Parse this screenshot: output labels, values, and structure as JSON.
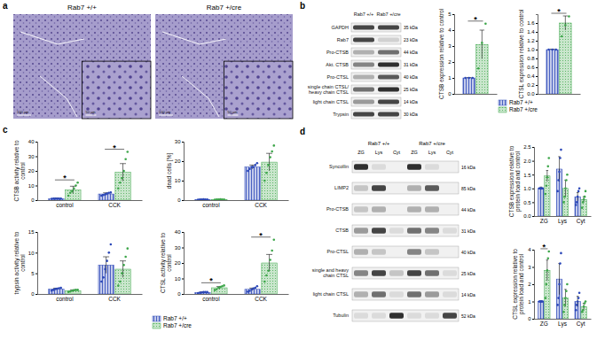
{
  "panel_labels": [
    "a",
    "b",
    "c",
    "d"
  ],
  "histology": {
    "labels": [
      "Rab7 +/+",
      "Rab7 +/cre"
    ],
    "scale_bars": [
      "100 µm",
      "50 µm"
    ]
  },
  "blots": [
    {
      "columns": [
        "Rab7 +/+",
        "Rab7 +/cre"
      ],
      "rows": [
        {
          "label": "GAPDH",
          "kda": "35 kDa",
          "bands": [
            0.8,
            0.8
          ]
        },
        {
          "label": "Rab7",
          "kda": "23 kDa",
          "bands": [
            0.8,
            0.15
          ]
        },
        {
          "label": "Pro-CTSB",
          "kda": "44 kDa",
          "bands": [
            0.3,
            0.6
          ]
        },
        {
          "label": "Akt. CTSB",
          "kda": "31 kDa",
          "bands": [
            0.5,
            0.9
          ]
        },
        {
          "label": "Pro-CTSL",
          "kda": "40 kDa",
          "bands": [
            0.3,
            0.7
          ]
        },
        {
          "label": "single chain CTSL/ heavy chain CTSL",
          "kda": "25 kDa",
          "bands": [
            0.6,
            0.9
          ]
        },
        {
          "label": "light chain CTSL",
          "kda": "14 kDa",
          "bands": [
            0.4,
            0.8
          ]
        },
        {
          "label": "Trypsin",
          "kda": "30 kDa",
          "bands": [
            0.8,
            0.8
          ]
        }
      ]
    },
    {
      "groups": [
        "Rab7 +/+",
        "Rab7 +/cre"
      ],
      "lanes": [
        "ZG",
        "Lys",
        "Cyt",
        "ZG",
        "Lys",
        "Cyt"
      ],
      "rows": [
        {
          "label": "Syncollin",
          "kda": "16 kDa",
          "bands": [
            0.9,
            0.1,
            0.0,
            0.9,
            0.1,
            0.0
          ]
        },
        {
          "label": "LIMP2",
          "kda": "85 kDa",
          "bands": [
            0.2,
            0.8,
            0.0,
            0.3,
            0.7,
            0.0
          ]
        },
        {
          "label": "Pro-CTSB",
          "kda": "44 kDa",
          "bands": [
            0.2,
            0.3,
            0.0,
            0.3,
            0.3,
            0.0
          ]
        },
        {
          "label": "CTSB",
          "kda": "31 kDa",
          "bands": [
            0.4,
            0.8,
            0.1,
            0.6,
            0.5,
            0.1
          ]
        },
        {
          "label": "Pro-CTSL",
          "kda": "40 kDa",
          "bands": [
            0.3,
            0.2,
            0.0,
            0.5,
            0.2,
            0.0
          ]
        },
        {
          "label": "single and heavy chain CTSL",
          "kda": "25 kDa",
          "bands": [
            0.5,
            0.8,
            0.2,
            0.8,
            0.6,
            0.1
          ]
        },
        {
          "label": "light chain CTSL",
          "kda": "14 kDa",
          "bands": [
            0.3,
            0.6,
            0.1,
            0.6,
            0.4,
            0.1
          ]
        },
        {
          "label": "Tubulin",
          "kda": "52 kDa",
          "bands": [
            0.1,
            0.1,
            0.9,
            0.1,
            0.1,
            0.8
          ]
        }
      ]
    }
  ],
  "chart_data": [
    {
      "type": "bar",
      "ylabel": "CTSB expression relative to control",
      "categories": [
        null
      ],
      "ylim": [
        0,
        5
      ],
      "yticks": [
        0,
        1,
        2,
        3,
        4,
        5
      ],
      "series": [
        {
          "name": "Rab7 +/+",
          "color": "#2b47b8",
          "values": [
            1
          ],
          "errors": [
            0.02
          ],
          "points": [
            [
              1,
              1,
              1
            ]
          ]
        },
        {
          "name": "Rab7 +/cre",
          "color": "#3da64a",
          "values": [
            3.1
          ],
          "errors": [
            0.9
          ],
          "points": [
            [
              1.6,
              3.2,
              4.4
            ]
          ]
        }
      ],
      "annotations": [
        {
          "text": "*",
          "category": 0
        }
      ]
    },
    {
      "type": "bar",
      "ylabel": "CTSL expression relative to control",
      "categories": [
        null
      ],
      "ylim": [
        0,
        1.8
      ],
      "yticks": [
        {
          "value": 0,
          "label": "0.0"
        },
        {
          "value": 0.2,
          "label": "0.2"
        },
        {
          "value": 0.4,
          "label": "0.4"
        },
        {
          "value": 0.6,
          "label": "0.6"
        },
        {
          "value": 0.8,
          "label": "0.8"
        },
        {
          "value": 1,
          "label": "1.0"
        },
        {
          "value": 1.2,
          "label": "1.2"
        },
        {
          "value": 1.4,
          "label": "1.4"
        },
        {
          "value": 1.6,
          "label": "1.6"
        }
      ],
      "legend": "bottom",
      "series": [
        {
          "name": "Rab7 +/+",
          "color": "#2b47b8",
          "values": [
            1.0
          ],
          "errors": [
            0.01
          ],
          "points": [
            [
              1,
              1,
              1
            ]
          ]
        },
        {
          "name": "Rab7 +/cre",
          "color": "#3da64a",
          "values": [
            1.6
          ],
          "errors": [
            0.16
          ],
          "points": [
            [
              1.3,
              1.55,
              1.75
            ]
          ]
        }
      ],
      "annotations": [
        {
          "text": "*",
          "category": 0
        }
      ]
    },
    {
      "type": "bar",
      "ylabel": "CTSB activity relative to control",
      "categories": [
        "control",
        "CCK"
      ],
      "ylim": [
        0,
        40
      ],
      "yticks": [
        0,
        10,
        20,
        30,
        40
      ],
      "series": [
        {
          "name": "Rab7 +/+",
          "color": "#2b47b8",
          "values": [
            1,
            4.2
          ],
          "errors": [
            0.3,
            0.8
          ],
          "points": [
            [
              0.9,
              1,
              1,
              1.1,
              1,
              1
            ],
            [
              3,
              3.5,
              4,
              4.5,
              5,
              5.2
            ]
          ]
        },
        {
          "name": "Rab7 +/cre",
          "color": "#3da64a",
          "values": [
            7,
            19
          ],
          "errors": [
            2.5,
            6
          ],
          "points": [
            [
              3,
              5,
              6,
              8,
              10,
              12
            ],
            [
              8,
              12,
              15,
              20,
              28,
              33
            ]
          ]
        }
      ],
      "annotations": [
        {
          "text": "*",
          "category": 0
        },
        {
          "text": "*",
          "category": 1
        }
      ]
    },
    {
      "type": "bar",
      "ylabel": "dead cells [%]",
      "categories": [
        "control",
        "CCK"
      ],
      "ylim": [
        0,
        30
      ],
      "yticks": [
        0,
        10,
        20,
        30
      ],
      "series": [
        {
          "name": "Rab7 +/+",
          "color": "#2b47b8",
          "values": [
            0.3,
            17
          ],
          "errors": [
            0.1,
            1
          ],
          "points": [
            [
              0.2,
              0.3,
              0.3,
              0.4,
              0.3,
              0.3
            ],
            [
              15,
              16,
              17,
              17,
              18,
              19
            ]
          ]
        },
        {
          "name": "Rab7 +/cre",
          "color": "#3da64a",
          "values": [
            0.3,
            19.5
          ],
          "errors": [
            0.1,
            4.5
          ],
          "points": [
            [
              0.2,
              0.3,
              0.3,
              0.4,
              0.3,
              0.3
            ],
            [
              10,
              14,
              18,
              22,
              25,
              28
            ]
          ]
        }
      ]
    },
    {
      "type": "bar",
      "ylabel": "trypsin activity relative to control",
      "categories": [
        "control",
        "CCK"
      ],
      "ylim": [
        0,
        15
      ],
      "yticks": [
        0,
        5,
        10,
        15
      ],
      "legend": "bottom",
      "series": [
        {
          "name": "Rab7 +/+",
          "color": "#2b47b8",
          "values": [
            1.2,
            7
          ],
          "errors": [
            0.2,
            2
          ],
          "points": [
            [
              0.8,
              1,
              1.2,
              1.3,
              1.4,
              1.5
            ],
            [
              3,
              4,
              6,
              8,
              10,
              12
            ]
          ]
        },
        {
          "name": "Rab7 +/cre",
          "color": "#3da64a",
          "values": [
            0.8,
            6
          ],
          "errors": [
            0.2,
            2
          ],
          "points": [
            [
              0.5,
              0.6,
              0.8,
              0.9,
              1,
              1
            ],
            [
              2,
              3,
              5,
              7,
              9,
              11
            ]
          ]
        }
      ]
    },
    {
      "type": "bar",
      "ylabel": "CTSL activity relative to control",
      "categories": [
        "control",
        "CCK"
      ],
      "ylim": [
        0,
        40
      ],
      "yticks": [
        0,
        10,
        20,
        30,
        40
      ],
      "series": [
        {
          "name": "Rab7 +/+",
          "color": "#2b47b8",
          "values": [
            1,
            3
          ],
          "errors": [
            0.3,
            0.8
          ],
          "points": [
            [
              0.5,
              0.8,
              1,
              1.2,
              1.3,
              1.2
            ],
            [
              1.5,
              2,
              3,
              3.5,
              4,
              5
            ]
          ]
        },
        {
          "name": "Rab7 +/cre",
          "color": "#3da64a",
          "values": [
            4,
            20
          ],
          "errors": [
            0.8,
            5.5
          ],
          "points": [
            [
              2.5,
              3,
              4,
              4.5,
              5,
              5.5
            ],
            [
              8,
              12,
              15,
              22,
              28,
              35
            ]
          ]
        }
      ],
      "annotations": [
        {
          "text": "*",
          "category": 0
        },
        {
          "text": "*",
          "category": 1
        }
      ]
    },
    {
      "type": "bar",
      "ylabel": "CTSB expression relative to protein load and control",
      "categories": [
        "ZG",
        "Lys",
        "Cyt"
      ],
      "ylim": [
        0,
        2.5
      ],
      "yticks": [
        {
          "value": 0,
          "label": "0.0"
        },
        {
          "value": 0.5,
          "label": "0.5"
        },
        {
          "value": 1,
          "label": "1.0"
        },
        {
          "value": 1.5,
          "label": "1.5"
        },
        {
          "value": 2,
          "label": "2.0"
        },
        {
          "value": 2.5,
          "label": "2.5"
        }
      ],
      "series": [
        {
          "name": "Rab7 +/+",
          "color": "#2b47b8",
          "values": [
            1,
            1.7,
            0.7
          ],
          "errors": [
            0.05,
            0.45,
            0.15
          ],
          "points": [
            [
              1,
              1,
              1,
              1,
              1
            ],
            [
              0.9,
              1.3,
              1.6,
              2.1,
              2.4
            ],
            [
              0.4,
              0.5,
              0.7,
              0.9,
              1.0
            ]
          ]
        },
        {
          "name": "Rab7 +/cre",
          "color": "#3da64a",
          "values": [
            1.45,
            1.0,
            0.6
          ],
          "errors": [
            0.2,
            0.3,
            0.1
          ],
          "points": [
            [
              0.8,
              1.1,
              1.4,
              1.8,
              2.1
            ],
            [
              0.5,
              0.7,
              1.0,
              1.3,
              1.5
            ],
            [
              0.3,
              0.5,
              0.6,
              0.7,
              0.9
            ]
          ]
        }
      ]
    },
    {
      "type": "bar",
      "ylabel": "CTSL expression relative to protein load and control",
      "categories": [
        "ZG",
        "Lys",
        "Cyt"
      ],
      "ylim": [
        0,
        4
      ],
      "yticks": [
        0,
        1,
        2,
        3,
        4
      ],
      "series": [
        {
          "name": "Rab7 +/+",
          "color": "#2b47b8",
          "values": [
            1,
            2.3,
            1.0
          ],
          "errors": [
            0.05,
            0.9,
            0.3
          ],
          "points": [
            [
              1,
              1,
              1,
              1,
              1
            ],
            [
              0.8,
              1.2,
              2,
              3.2,
              3.8
            ],
            [
              0.5,
              0.8,
              1.0,
              1.2,
              1.5
            ]
          ]
        },
        {
          "name": "Rab7 +/cre",
          "color": "#3da64a",
          "values": [
            2.8,
            1.2,
            0.7
          ],
          "errors": [
            0.6,
            0.5,
            0.2
          ],
          "points": [
            [
              1.2,
              2,
              2.8,
              3.5,
              3.9
            ],
            [
              0.4,
              0.8,
              1.2,
              1.6,
              2.0
            ],
            [
              0.4,
              0.5,
              0.7,
              0.9,
              1.0
            ]
          ]
        }
      ],
      "annotations": [
        {
          "text": "*",
          "category": 0
        }
      ]
    }
  ]
}
